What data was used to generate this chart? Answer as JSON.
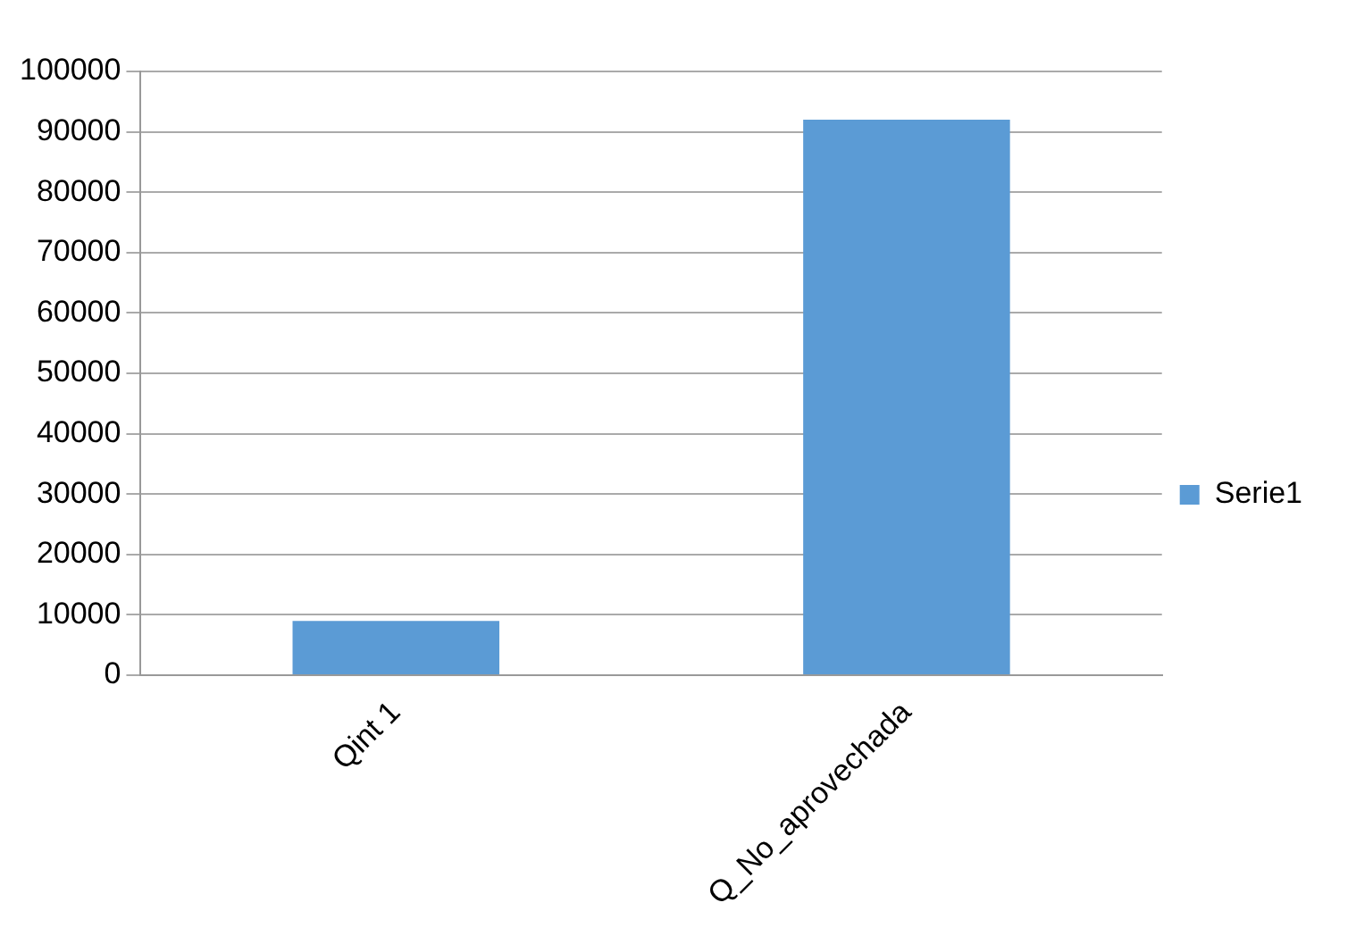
{
  "chart_data": {
    "type": "bar",
    "categories": [
      "Qint 1",
      "Q_No_aprovechada"
    ],
    "series": [
      {
        "name": "Serie1",
        "color": "#5b9bd5",
        "values": [
          9000,
          92000
        ]
      }
    ],
    "ylim": [
      0,
      100000
    ],
    "yticks": [
      0,
      10000,
      20000,
      30000,
      40000,
      50000,
      60000,
      70000,
      80000,
      90000,
      100000
    ],
    "grid": "y",
    "legend": "right"
  }
}
